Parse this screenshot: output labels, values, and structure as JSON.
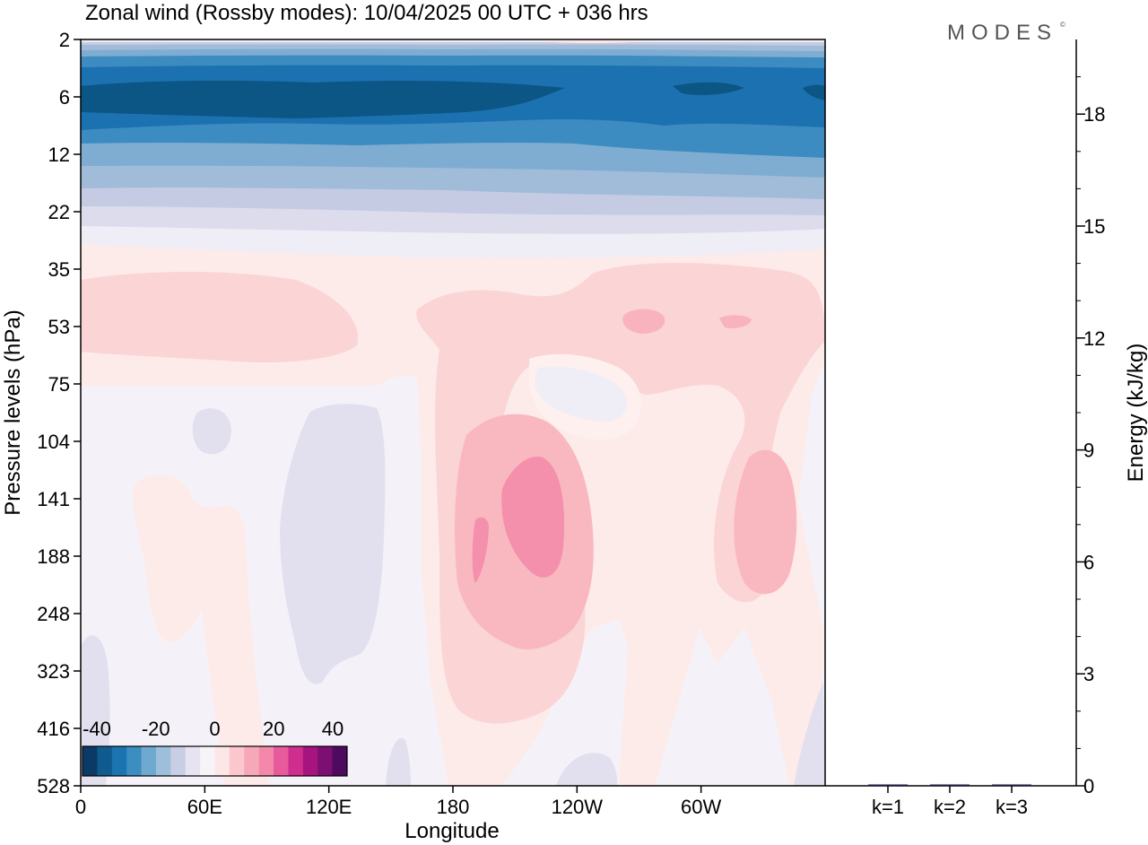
{
  "title": "Zonal wind (Rossby modes):  10/04/2025  00 UTC  + 036 hrs",
  "logo": "MODES",
  "logo_mark": "©",
  "colors": {
    "frame": "#000000",
    "bar": "#2a1a4a",
    "background": "#ffffff"
  },
  "chart_data": [
    {
      "type": "heatmap",
      "title": "Zonal wind (Rossby modes):  10/04/2025  00 UTC  + 036 hrs",
      "xlabel": "Longitude",
      "ylabel": "Pressure levels (hPa)",
      "x_ticks": [
        "0",
        "60E",
        "120E",
        "180",
        "120W",
        "60W"
      ],
      "y_ticks": [
        "2",
        "6",
        "12",
        "22",
        "35",
        "53",
        "75",
        "104",
        "141",
        "188",
        "248",
        "323",
        "416",
        "528"
      ],
      "colorbar": {
        "tick_labels": [
          "-40",
          "-20",
          "0",
          "20",
          "40"
        ],
        "colors": [
          "#0b3a66",
          "#0f5a8f",
          "#1b73b0",
          "#3c8dc0",
          "#6fa9cf",
          "#9dbfdc",
          "#c8cfe5",
          "#e6e4f1",
          "#f6f4f9",
          "#fde6e6",
          "#fbc7cc",
          "#f7a8b8",
          "#f388aa",
          "#e75a9c",
          "#cf2e8f",
          "#a8147f",
          "#7b0f72",
          "#4e0a5e"
        ]
      },
      "regions": [
        {
          "value": -35,
          "desc": "easterly jet core near 6 hPa"
        },
        {
          "value": -25,
          "desc": "easterlies 4-10 hPa"
        },
        {
          "value": 8,
          "desc": "westerlies near 53 hPa"
        },
        {
          "value": 20,
          "desc": "maximum near 141-188 hPa, 160W-150W"
        },
        {
          "value": 12,
          "desc": "maximum near 141-188 hPa, 35W"
        }
      ]
    },
    {
      "type": "bar",
      "categories": [
        "k=1",
        "k=2",
        "k=3"
      ],
      "values": [
        0.03,
        0.02,
        0.02
      ],
      "ylabel": "Energy (kJ/kg)",
      "y_ticks": [
        "0",
        "3",
        "6",
        "9",
        "12",
        "15",
        "18"
      ],
      "ylim": [
        0,
        20
      ]
    }
  ]
}
